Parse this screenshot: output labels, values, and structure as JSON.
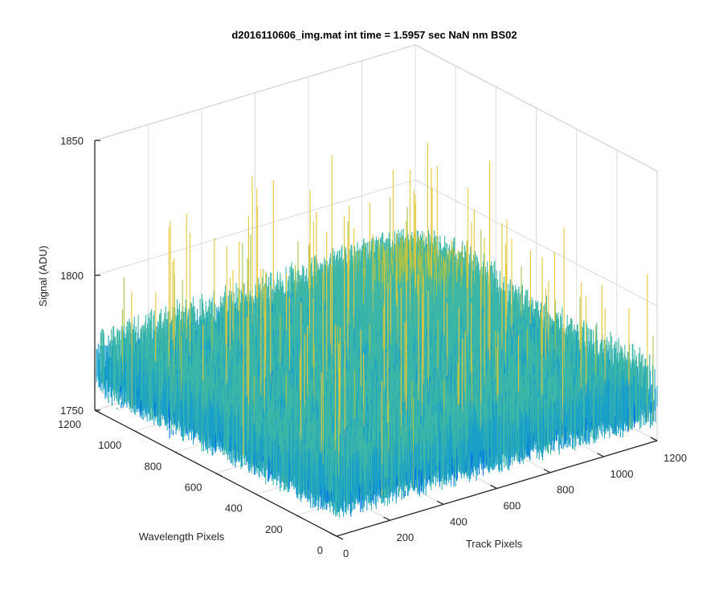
{
  "chart_data": {
    "type": "surface",
    "title": "d2016110606_img.mat int time = 1.5957 sec  NaN nm BS02",
    "xlabel": "Track Pixels",
    "ylabel": "Wavelength Pixels",
    "zlabel": "Signal (ADU)",
    "xlim": [
      0,
      1200
    ],
    "ylim": [
      0,
      1200
    ],
    "zlim": [
      1750,
      1850
    ],
    "x_ticks": [
      "0",
      "200",
      "400",
      "600",
      "800",
      "1000",
      "1200"
    ],
    "y_ticks": [
      "0",
      "200",
      "400",
      "600",
      "800",
      "1000",
      "1200"
    ],
    "z_ticks": [
      "1750",
      "1800",
      "1850"
    ],
    "surface": {
      "grid_size": [
        1024,
        1024
      ],
      "baseline_signal": 1773,
      "peak_signal": 1842,
      "min_signal": 1752,
      "colormap": "parula",
      "color_range": [
        "#0072e6",
        "#1aa0c8",
        "#3db6a6",
        "#a8c34a",
        "#e6c83a"
      ]
    },
    "grid": true
  }
}
